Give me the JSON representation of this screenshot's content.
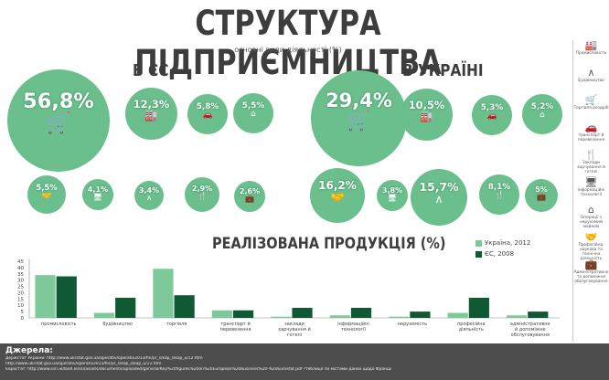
{
  "title": "СТРУКТУРА ПІДПРИЄМНИЦТВА",
  "subtitle": "основні види діяльності,(%)",
  "eu": {
    "title": "В ЄС",
    "circles": [
      {
        "value": "56,8%",
        "icon": "cart-icon"
      },
      {
        "value": "12,3%",
        "icon": "factory-icon"
      },
      {
        "value": "5,8%",
        "icon": "car-icon"
      },
      {
        "value": "5,5%",
        "icon": "house-icon"
      },
      {
        "value": "5,5%",
        "icon": "handshake-icon"
      },
      {
        "value": "4,1%",
        "icon": "monitor-icon"
      },
      {
        "value": "3,4%",
        "icon": "compass-icon"
      },
      {
        "value": "2,9%",
        "icon": "cutlery-icon"
      },
      {
        "value": "2,6%",
        "icon": "briefcase-icon"
      }
    ]
  },
  "ua": {
    "title": "В УКРАЇНІ",
    "circles": [
      {
        "value": "29,4%",
        "icon": "cart-icon"
      },
      {
        "value": "10,5%",
        "icon": "factory-icon"
      },
      {
        "value": "5,3%",
        "icon": "car-icon"
      },
      {
        "value": "5,2%",
        "icon": "house-icon"
      },
      {
        "value": "16,2%",
        "icon": "handshake-icon"
      },
      {
        "value": "3,8%",
        "icon": "monitor-icon"
      },
      {
        "value": "15,7%",
        "icon": "compass-icon"
      },
      {
        "value": "8,1%",
        "icon": "cutlery-icon"
      },
      {
        "value": "5%",
        "icon": "briefcase-icon"
      }
    ]
  },
  "colors": {
    "ukraine": "#7ec99a",
    "eu": "#0f5a34",
    "circle": "#6abf8c",
    "text": "#3d3d3d"
  },
  "chart_data": {
    "type": "bar",
    "title": "РЕАЛІЗОВАНА ПРОДУКЦІЯ (%)",
    "categories": [
      "промисловість",
      "будівництво",
      "торгівля",
      "транспорт й перевезення",
      "заклади харчування й готелі",
      "інформаційні технології",
      "нерухомість",
      "професійна діяльність",
      "адміністративне й допоміжне обслуговування"
    ],
    "series": [
      {
        "name": "Україна, 2012",
        "values": [
          34,
          4,
          39,
          6,
          1,
          2,
          1,
          4,
          2
        ]
      },
      {
        "name": "ЄС, 2008",
        "values": [
          33,
          16,
          18,
          6,
          8,
          8,
          5,
          16,
          5
        ]
      }
    ],
    "ylim": [
      0,
      45
    ],
    "yticks": [
      "0",
      "5",
      "10",
      "15",
      "20",
      "25",
      "30",
      "35",
      "40",
      "45"
    ],
    "legend": "top-right",
    "grid": false
  },
  "sidebar": [
    {
      "label": "Промисловість",
      "icon": "factory-icon"
    },
    {
      "label": "Будівництво",
      "icon": "compass-icon"
    },
    {
      "label": "Торгівля роздріб",
      "icon": "cart-icon"
    },
    {
      "label": "транспорт й перевезення",
      "icon": "car-icon"
    },
    {
      "label": "Заклади харчування й готелі",
      "icon": "cutlery-icon"
    },
    {
      "label": "Інформаційні технології",
      "icon": "monitor-icon"
    },
    {
      "label": "Операції з нерухомим майном",
      "icon": "house-icon"
    },
    {
      "label": "Професійна, наукова та технічна діяльність",
      "icon": "handshake-icon"
    },
    {
      "label": "Адміністративне та допоміжне обслуговування",
      "icon": "briefcase-icon"
    }
  ],
  "footer": {
    "title": "Джерела:",
    "lines": [
      "Держстат України: http://www.ukrstat.gov.ua/operativ/operativ2013/fin/pr_s/kap_s/kap_u/12.htm",
      "http://www.ukrstat.gov.ua/operativ/operativ2013/fin/pr_s/kap_s/kap_u/12.htm",
      "Євростат: http://www.ssri.ie/land.ie/ssi/assets/documents/uploaded/general/Key%20figures%20on%20European%20business%20-%20Eurostat.pdf ?тяблиця по містами даних щодо Франції"
    ]
  }
}
